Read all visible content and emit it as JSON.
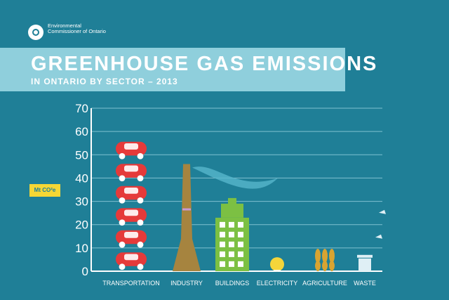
{
  "header": {
    "org_name": "Environmental Commissioner of Ontario",
    "title": "GREENHOUSE GAS EMISSIONS",
    "subtitle": "IN ONTARIO BY SECTOR – 2013"
  },
  "colors": {
    "background": "#1f7f97",
    "banner": "#8fcfdc",
    "unit_badge": "#f6d735",
    "transportation": "#e53a3a",
    "industry": "#a6843f",
    "buildings": "#7cc043",
    "electricity": "#f4d53a",
    "agriculture": "#d9a431",
    "waste": "#dfeff5"
  },
  "chart_data": {
    "type": "bar",
    "title": "GREENHOUSE GAS EMISSIONS",
    "subtitle": "IN ONTARIO BY SECTOR – 2013",
    "ylabel": "Mt CO²e",
    "xlabel": "",
    "ylim": [
      0,
      70
    ],
    "yticks": [
      0,
      10,
      20,
      30,
      40,
      50,
      60,
      70
    ],
    "grid": true,
    "categories": [
      "TRANSPORTATION",
      "INDUSTRY",
      "BUILDINGS",
      "ELECTRICITY",
      "AGRICULTURE",
      "WASTE"
    ],
    "values": [
      57,
      46,
      29,
      6,
      9,
      7
    ],
    "icons": [
      "car-stack-icon",
      "smokestack-icon",
      "building-icon",
      "lightbulb-icon",
      "wheat-icon",
      "trash-can-icon"
    ]
  }
}
